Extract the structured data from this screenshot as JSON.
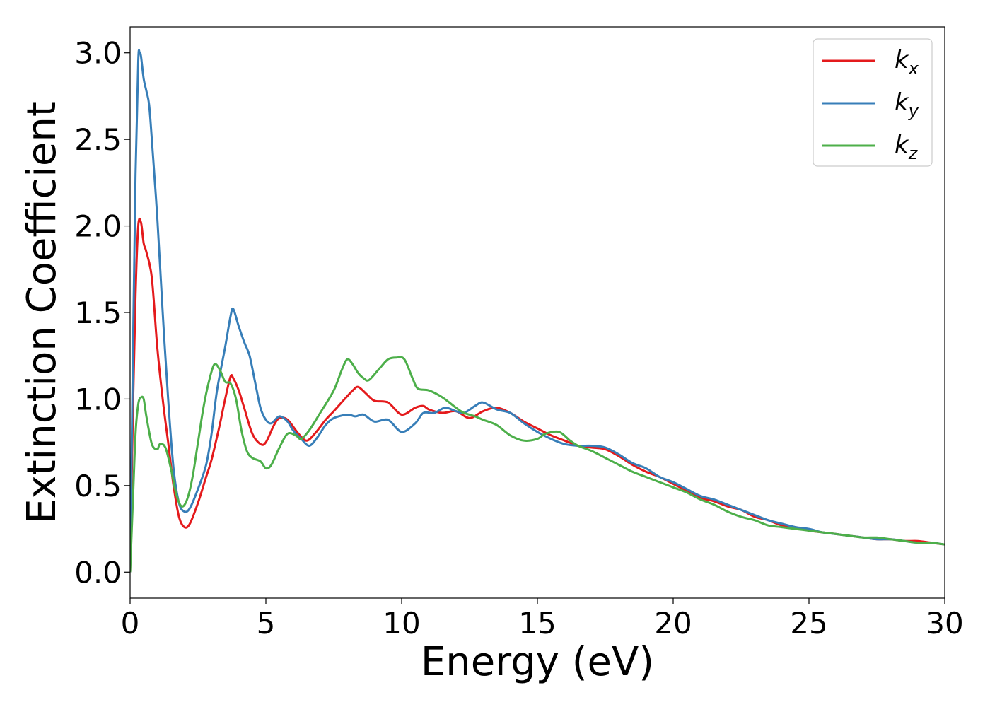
{
  "chart_data": {
    "type": "line",
    "xlabel": "Energy (eV)",
    "ylabel": "Extinction Coefficient",
    "xlim": [
      0,
      30
    ],
    "ylim": [
      -0.15,
      3.15
    ],
    "x_ticks": [
      0,
      5,
      10,
      15,
      20,
      25,
      30
    ],
    "y_ticks": [
      "0.0",
      "0.5",
      "1.0",
      "1.5",
      "2.0",
      "2.5",
      "3.0"
    ],
    "grid": false,
    "legend_position": "top-right",
    "legend": [
      {
        "base": "k",
        "sub": "x",
        "color": "#e41a1c"
      },
      {
        "base": "k",
        "sub": "y",
        "color": "#377eb8"
      },
      {
        "base": "k",
        "sub": "z",
        "color": "#4daf4a"
      }
    ],
    "series": [
      {
        "name": "kx",
        "color": "#e41a1c",
        "points": [
          [
            0,
            0
          ],
          [
            0.1,
            0.9
          ],
          [
            0.2,
            1.6
          ],
          [
            0.3,
            2.0
          ],
          [
            0.4,
            2.02
          ],
          [
            0.5,
            1.9
          ],
          [
            0.6,
            1.85
          ],
          [
            0.8,
            1.7
          ],
          [
            1.0,
            1.3
          ],
          [
            1.2,
            1.0
          ],
          [
            1.4,
            0.75
          ],
          [
            1.6,
            0.5
          ],
          [
            1.8,
            0.32
          ],
          [
            2.0,
            0.26
          ],
          [
            2.2,
            0.28
          ],
          [
            2.5,
            0.4
          ],
          [
            2.8,
            0.55
          ],
          [
            3.0,
            0.65
          ],
          [
            3.3,
            0.85
          ],
          [
            3.5,
            1.0
          ],
          [
            3.7,
            1.13
          ],
          [
            3.8,
            1.12
          ],
          [
            4.0,
            1.05
          ],
          [
            4.2,
            0.95
          ],
          [
            4.5,
            0.8
          ],
          [
            4.8,
            0.74
          ],
          [
            5.0,
            0.75
          ],
          [
            5.3,
            0.85
          ],
          [
            5.5,
            0.89
          ],
          [
            5.8,
            0.88
          ],
          [
            6.2,
            0.8
          ],
          [
            6.5,
            0.76
          ],
          [
            6.8,
            0.8
          ],
          [
            7.2,
            0.88
          ],
          [
            7.5,
            0.93
          ],
          [
            7.9,
            1.0
          ],
          [
            8.2,
            1.05
          ],
          [
            8.4,
            1.07
          ],
          [
            8.7,
            1.03
          ],
          [
            9.0,
            0.99
          ],
          [
            9.5,
            0.98
          ],
          [
            10.0,
            0.91
          ],
          [
            10.5,
            0.95
          ],
          [
            10.8,
            0.96
          ],
          [
            11.0,
            0.94
          ],
          [
            11.5,
            0.92
          ],
          [
            12.0,
            0.93
          ],
          [
            12.5,
            0.89
          ],
          [
            13.0,
            0.93
          ],
          [
            13.5,
            0.95
          ],
          [
            14.0,
            0.92
          ],
          [
            14.5,
            0.87
          ],
          [
            15.0,
            0.83
          ],
          [
            15.5,
            0.79
          ],
          [
            16.0,
            0.76
          ],
          [
            16.5,
            0.73
          ],
          [
            17.0,
            0.72
          ],
          [
            17.5,
            0.71
          ],
          [
            18.0,
            0.67
          ],
          [
            18.5,
            0.62
          ],
          [
            19.0,
            0.58
          ],
          [
            19.5,
            0.55
          ],
          [
            20.0,
            0.51
          ],
          [
            20.5,
            0.47
          ],
          [
            21.0,
            0.43
          ],
          [
            21.5,
            0.41
          ],
          [
            22.0,
            0.38
          ],
          [
            22.5,
            0.36
          ],
          [
            23.0,
            0.32
          ],
          [
            23.5,
            0.3
          ],
          [
            24.0,
            0.27
          ],
          [
            24.5,
            0.26
          ],
          [
            25.0,
            0.24
          ],
          [
            25.5,
            0.23
          ],
          [
            26.0,
            0.22
          ],
          [
            26.5,
            0.21
          ],
          [
            27.0,
            0.2
          ],
          [
            27.5,
            0.19
          ],
          [
            28.0,
            0.19
          ],
          [
            28.5,
            0.18
          ],
          [
            29.0,
            0.18
          ],
          [
            29.5,
            0.17
          ],
          [
            30.0,
            0.16
          ]
        ]
      },
      {
        "name": "ky",
        "color": "#377eb8",
        "points": [
          [
            0,
            0
          ],
          [
            0.1,
            1.2
          ],
          [
            0.2,
            2.3
          ],
          [
            0.3,
            2.95
          ],
          [
            0.35,
            3.0
          ],
          [
            0.4,
            2.98
          ],
          [
            0.5,
            2.85
          ],
          [
            0.6,
            2.78
          ],
          [
            0.7,
            2.7
          ],
          [
            0.8,
            2.5
          ],
          [
            1.0,
            2.05
          ],
          [
            1.2,
            1.5
          ],
          [
            1.4,
            1.0
          ],
          [
            1.6,
            0.6
          ],
          [
            1.8,
            0.4
          ],
          [
            2.0,
            0.35
          ],
          [
            2.2,
            0.37
          ],
          [
            2.5,
            0.48
          ],
          [
            2.8,
            0.62
          ],
          [
            3.0,
            0.8
          ],
          [
            3.2,
            1.05
          ],
          [
            3.5,
            1.3
          ],
          [
            3.7,
            1.48
          ],
          [
            3.8,
            1.52
          ],
          [
            4.0,
            1.42
          ],
          [
            4.2,
            1.33
          ],
          [
            4.4,
            1.25
          ],
          [
            4.6,
            1.1
          ],
          [
            4.8,
            0.95
          ],
          [
            5.0,
            0.88
          ],
          [
            5.2,
            0.86
          ],
          [
            5.5,
            0.9
          ],
          [
            5.8,
            0.87
          ],
          [
            6.0,
            0.82
          ],
          [
            6.3,
            0.77
          ],
          [
            6.6,
            0.73
          ],
          [
            6.9,
            0.78
          ],
          [
            7.2,
            0.85
          ],
          [
            7.5,
            0.89
          ],
          [
            8.0,
            0.91
          ],
          [
            8.3,
            0.9
          ],
          [
            8.6,
            0.91
          ],
          [
            9.0,
            0.87
          ],
          [
            9.5,
            0.88
          ],
          [
            10.0,
            0.81
          ],
          [
            10.5,
            0.86
          ],
          [
            10.8,
            0.92
          ],
          [
            11.2,
            0.92
          ],
          [
            11.6,
            0.95
          ],
          [
            12.0,
            0.93
          ],
          [
            12.3,
            0.92
          ],
          [
            12.7,
            0.96
          ],
          [
            13.0,
            0.98
          ],
          [
            13.5,
            0.94
          ],
          [
            14.0,
            0.92
          ],
          [
            14.5,
            0.86
          ],
          [
            15.0,
            0.81
          ],
          [
            15.5,
            0.77
          ],
          [
            16.0,
            0.74
          ],
          [
            16.5,
            0.73
          ],
          [
            17.0,
            0.73
          ],
          [
            17.5,
            0.72
          ],
          [
            18.0,
            0.68
          ],
          [
            18.5,
            0.63
          ],
          [
            19.0,
            0.6
          ],
          [
            19.5,
            0.55
          ],
          [
            20.0,
            0.52
          ],
          [
            20.5,
            0.48
          ],
          [
            21.0,
            0.44
          ],
          [
            21.5,
            0.42
          ],
          [
            22.0,
            0.39
          ],
          [
            22.5,
            0.36
          ],
          [
            23.0,
            0.33
          ],
          [
            23.5,
            0.3
          ],
          [
            24.0,
            0.28
          ],
          [
            24.5,
            0.26
          ],
          [
            25.0,
            0.25
          ],
          [
            25.5,
            0.23
          ],
          [
            26.0,
            0.22
          ],
          [
            26.5,
            0.21
          ],
          [
            27.0,
            0.2
          ],
          [
            27.5,
            0.19
          ],
          [
            28.0,
            0.19
          ],
          [
            28.5,
            0.18
          ],
          [
            29.0,
            0.17
          ],
          [
            29.5,
            0.17
          ],
          [
            30.0,
            0.16
          ]
        ]
      },
      {
        "name": "kz",
        "color": "#4daf4a",
        "points": [
          [
            0,
            0
          ],
          [
            0.1,
            0.4
          ],
          [
            0.2,
            0.8
          ],
          [
            0.3,
            0.97
          ],
          [
            0.4,
            1.01
          ],
          [
            0.5,
            1.0
          ],
          [
            0.6,
            0.9
          ],
          [
            0.8,
            0.74
          ],
          [
            1.0,
            0.71
          ],
          [
            1.1,
            0.74
          ],
          [
            1.3,
            0.72
          ],
          [
            1.5,
            0.6
          ],
          [
            1.7,
            0.45
          ],
          [
            1.9,
            0.38
          ],
          [
            2.1,
            0.42
          ],
          [
            2.3,
            0.55
          ],
          [
            2.5,
            0.75
          ],
          [
            2.7,
            0.95
          ],
          [
            2.9,
            1.1
          ],
          [
            3.1,
            1.2
          ],
          [
            3.3,
            1.17
          ],
          [
            3.5,
            1.1
          ],
          [
            3.7,
            1.09
          ],
          [
            3.9,
            1.0
          ],
          [
            4.1,
            0.82
          ],
          [
            4.3,
            0.7
          ],
          [
            4.5,
            0.66
          ],
          [
            4.8,
            0.64
          ],
          [
            5.0,
            0.6
          ],
          [
            5.2,
            0.62
          ],
          [
            5.5,
            0.72
          ],
          [
            5.8,
            0.8
          ],
          [
            6.1,
            0.79
          ],
          [
            6.3,
            0.77
          ],
          [
            6.6,
            0.82
          ],
          [
            7.0,
            0.92
          ],
          [
            7.5,
            1.05
          ],
          [
            7.8,
            1.17
          ],
          [
            8.0,
            1.23
          ],
          [
            8.2,
            1.2
          ],
          [
            8.4,
            1.15
          ],
          [
            8.6,
            1.12
          ],
          [
            8.8,
            1.11
          ],
          [
            9.2,
            1.18
          ],
          [
            9.5,
            1.23
          ],
          [
            9.8,
            1.24
          ],
          [
            10.1,
            1.23
          ],
          [
            10.4,
            1.12
          ],
          [
            10.6,
            1.06
          ],
          [
            11.0,
            1.05
          ],
          [
            11.5,
            1.01
          ],
          [
            12.0,
            0.95
          ],
          [
            12.3,
            0.92
          ],
          [
            12.7,
            0.9
          ],
          [
            13.0,
            0.88
          ],
          [
            13.5,
            0.85
          ],
          [
            14.0,
            0.79
          ],
          [
            14.5,
            0.76
          ],
          [
            15.0,
            0.77
          ],
          [
            15.3,
            0.8
          ],
          [
            15.8,
            0.81
          ],
          [
            16.2,
            0.76
          ],
          [
            16.5,
            0.73
          ],
          [
            17.0,
            0.7
          ],
          [
            17.5,
            0.66
          ],
          [
            18.0,
            0.62
          ],
          [
            18.5,
            0.58
          ],
          [
            19.0,
            0.55
          ],
          [
            19.5,
            0.52
          ],
          [
            20.0,
            0.49
          ],
          [
            20.5,
            0.46
          ],
          [
            21.0,
            0.42
          ],
          [
            21.5,
            0.39
          ],
          [
            22.0,
            0.35
          ],
          [
            22.5,
            0.32
          ],
          [
            23.0,
            0.3
          ],
          [
            23.5,
            0.27
          ],
          [
            24.0,
            0.26
          ],
          [
            24.5,
            0.25
          ],
          [
            25.0,
            0.24
          ],
          [
            25.5,
            0.23
          ],
          [
            26.0,
            0.22
          ],
          [
            26.5,
            0.21
          ],
          [
            27.0,
            0.2
          ],
          [
            27.5,
            0.2
          ],
          [
            28.0,
            0.19
          ],
          [
            28.5,
            0.18
          ],
          [
            29.0,
            0.17
          ],
          [
            29.5,
            0.17
          ],
          [
            30.0,
            0.16
          ]
        ]
      }
    ]
  }
}
